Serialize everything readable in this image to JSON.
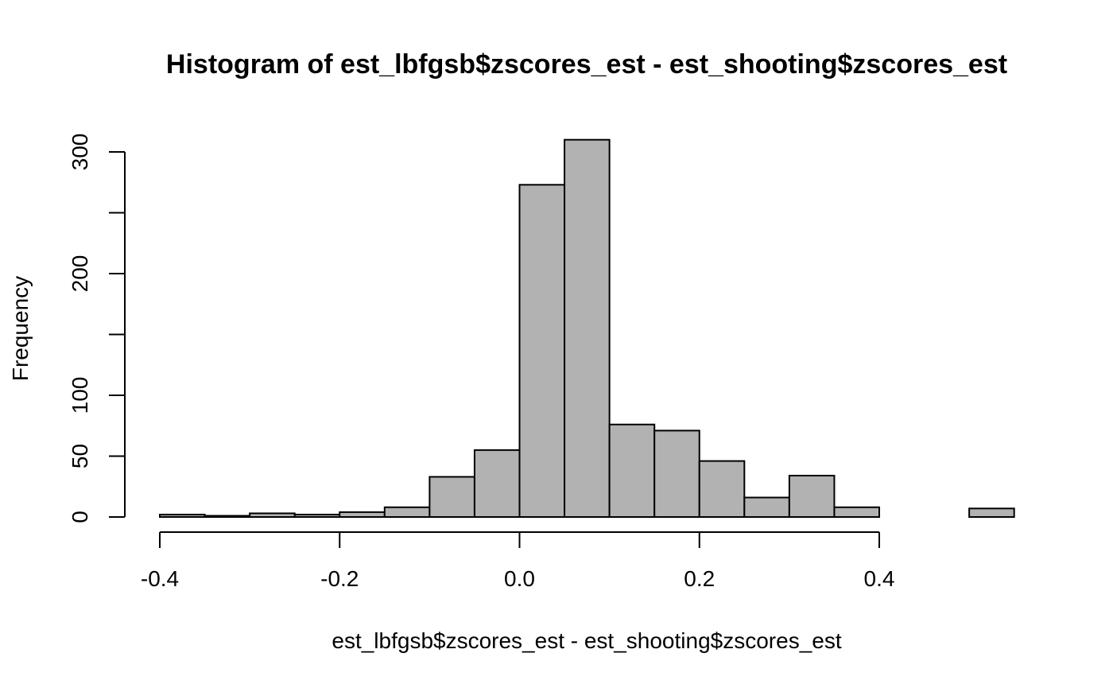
{
  "chart_data": {
    "type": "bar",
    "title": "Histogram of est_lbfgsb$zscores_est - est_shooting$zscores_est",
    "xlabel": "est_lbfgsb$zscores_est - est_shooting$zscores_est",
    "ylabel": "Frequency",
    "bin_edges": [
      -0.4,
      -0.35,
      -0.3,
      -0.25,
      -0.2,
      -0.15,
      -0.1,
      -0.05,
      0.0,
      0.05,
      0.1,
      0.15,
      0.2,
      0.25,
      0.3,
      0.35,
      0.4,
      0.45,
      0.5,
      0.55
    ],
    "values": [
      2,
      1,
      3,
      2,
      4,
      8,
      33,
      55,
      273,
      310,
      76,
      71,
      46,
      16,
      34,
      8,
      0,
      0,
      7
    ],
    "xlim": [
      -0.4,
      0.55
    ],
    "ylim": [
      0,
      310
    ],
    "x_ticks": [
      -0.4,
      -0.2,
      0.0,
      0.2,
      0.4
    ],
    "x_tick_labels": [
      "-0.4",
      "-0.2",
      "0.0",
      "0.2",
      "0.4"
    ],
    "y_ticks": [
      0,
      50,
      100,
      150,
      200,
      250,
      300
    ],
    "y_tick_labels": [
      "0",
      "50",
      "100",
      "",
      "200",
      "",
      "300"
    ],
    "bar_color": "#b2b2b2",
    "grid": false,
    "legend": "none"
  }
}
